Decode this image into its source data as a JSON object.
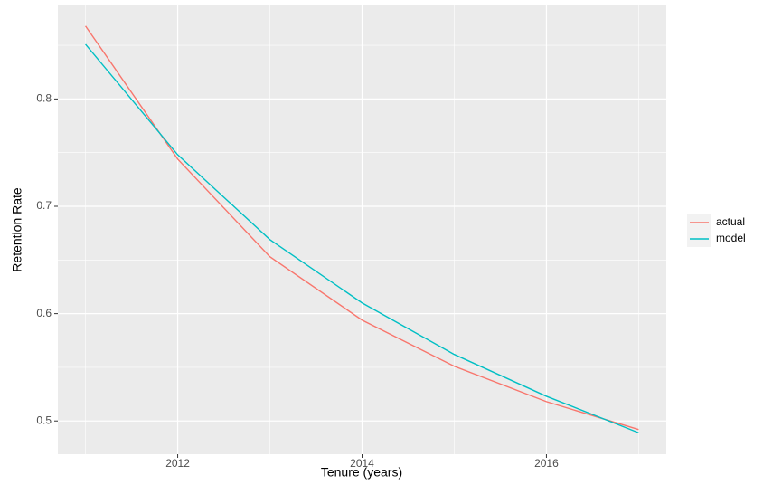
{
  "chart_data": {
    "type": "line",
    "x_label": "Tenure (years)",
    "y_label": "Retention Rate",
    "x": [
      2011,
      2012,
      2013,
      2014,
      2015,
      2016,
      2017
    ],
    "series": [
      {
        "name": "actual",
        "color": "#f8766d",
        "values": [
          0.868,
          0.744,
          0.653,
          0.594,
          0.551,
          0.518,
          0.492
        ]
      },
      {
        "name": "model",
        "color": "#00bfc4",
        "values": [
          0.851,
          0.748,
          0.669,
          0.61,
          0.562,
          0.523,
          0.489
        ]
      }
    ],
    "xlim": [
      2010.7,
      2017.3
    ],
    "ylim": [
      0.469,
      0.888
    ],
    "xticks": [
      2012,
      2014,
      2016
    ],
    "yticks": [
      0.5,
      0.6,
      0.7,
      0.8
    ],
    "grid": true,
    "minor_grid": true,
    "legend": "right"
  }
}
